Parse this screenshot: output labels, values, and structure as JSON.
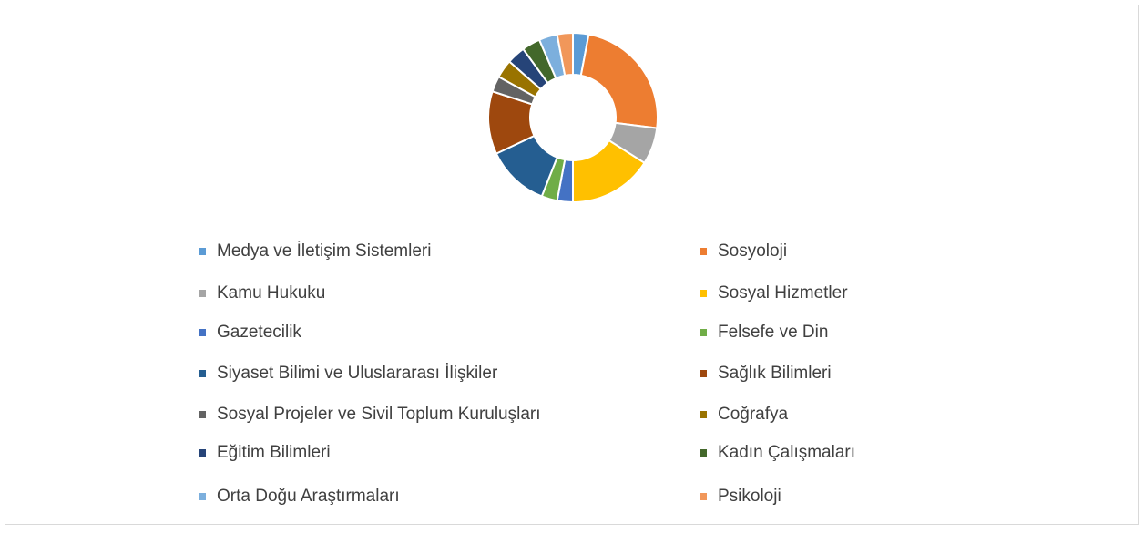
{
  "chart_data": {
    "type": "donut",
    "categories": [
      "Medya ve İletişim Sistemleri",
      "Sosyoloji",
      "Kamu Hukuku",
      "Sosyal Hizmetler",
      "Gazetecilik",
      "Felsefe ve Din",
      "Siyaset Bilimi ve Uluslararası İlişkiler",
      "Sağlık Bilimleri",
      "Sosyal Projeler ve Sivil Toplum Kuruluşları",
      "Coğrafya",
      "Eğitim Bilimleri",
      "Kadın Çalışmaları",
      "Orta Doğu Araştırmaları",
      "Psikoloji"
    ],
    "values": [
      3,
      24,
      7,
      16,
      3,
      3,
      12,
      12,
      3,
      3.5,
      3.5,
      3.5,
      3.5,
      3
    ],
    "colors": [
      "#5b9bd5",
      "#ed7d31",
      "#a5a5a5",
      "#ffc000",
      "#4472c4",
      "#70ad47",
      "#255e91",
      "#9e480e",
      "#636363",
      "#997300",
      "#264478",
      "#43682b",
      "#7cafdd",
      "#f1975a"
    ],
    "legend": "bottom"
  }
}
